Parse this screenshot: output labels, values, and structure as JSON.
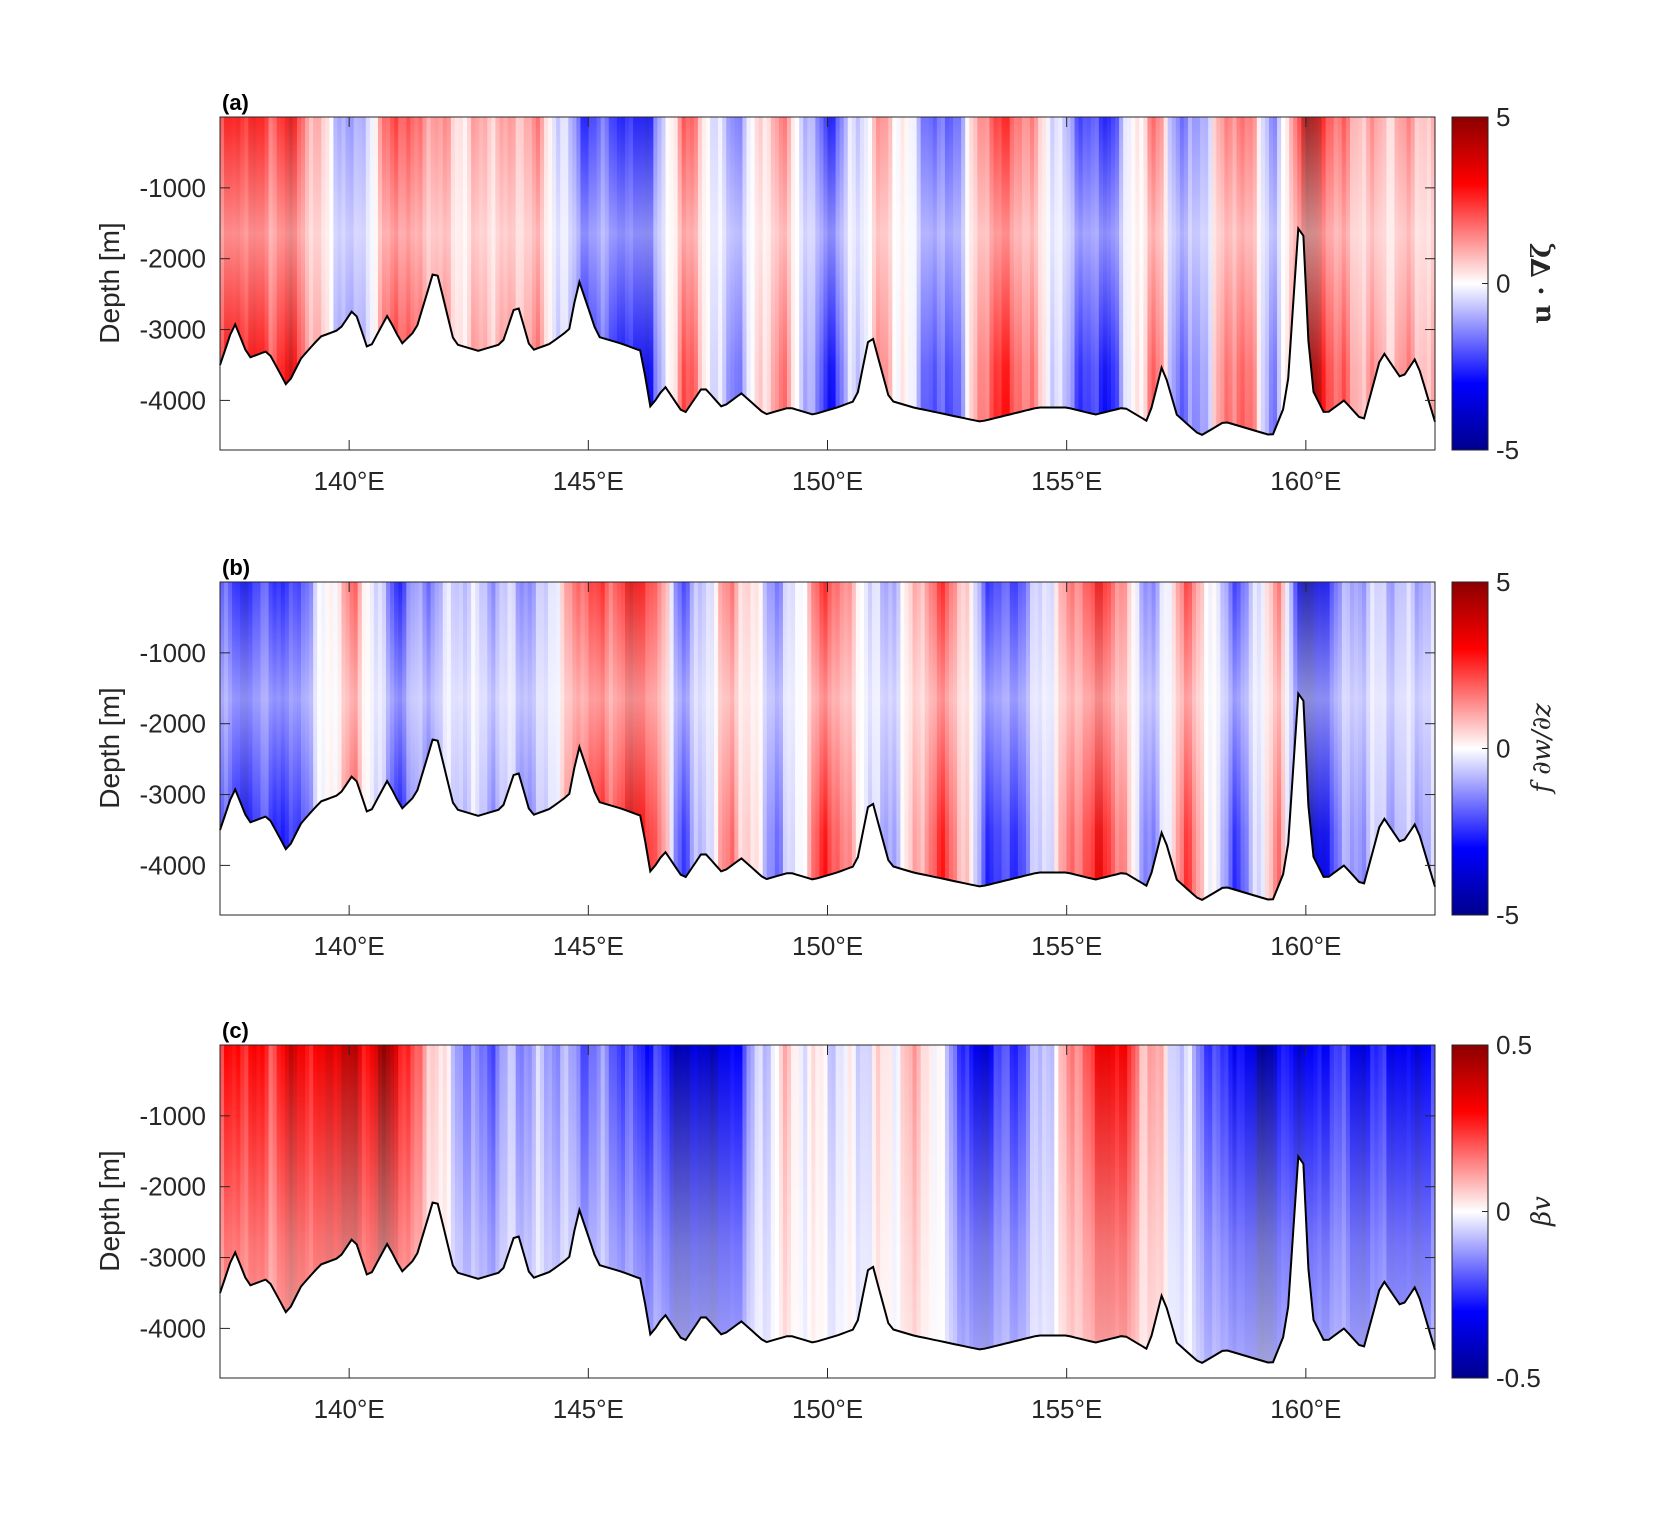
{
  "colors": {
    "negative": "#00008c",
    "neutral": "#ffffff",
    "positive": "#8c0000",
    "bathymetry": "#000000"
  },
  "chart_data": [
    {
      "type": "heatmap",
      "panel_label": "(a)",
      "ylabel": "Depth [m]",
      "xtick_labels": [
        "140°E",
        "145°E",
        "150°E",
        "155°E",
        "160°E"
      ],
      "xticks": [
        140,
        145,
        150,
        155,
        160
      ],
      "yticks": [
        -1000,
        -2000,
        -3000,
        -4000
      ],
      "ytick_labels": [
        "-1000",
        "-2000",
        "-3000",
        "-4000"
      ],
      "xlim": [
        137.3,
        162.7
      ],
      "ylim": [
        -4700,
        0
      ],
      "colorbar": {
        "label": "u · ∇ζ",
        "ticks": [
          5,
          0,
          -5
        ],
        "tick_labels": [
          "5",
          "0",
          "-5"
        ],
        "clim": [
          -5,
          5
        ]
      },
      "field": {
        "lon": [
          138.8,
          140.1,
          141.0,
          142.2,
          143.9,
          144.9,
          146.3,
          147.0,
          148.0,
          149.0,
          150.0,
          151.2,
          152.5,
          153.5,
          154.4,
          155.7,
          156.8,
          157.5,
          158.6,
          159.4,
          160.0,
          161.0
        ],
        "value": [
          3.2,
          -2.0,
          3.0,
          0.8,
          1.5,
          -2.5,
          -3.5,
          2.5,
          -1.8,
          1.8,
          -3.0,
          1.5,
          -3.2,
          3.5,
          1.0,
          -3.8,
          2.2,
          -2.8,
          3.0,
          -2.0,
          5.0,
          1.2
        ]
      }
    },
    {
      "type": "heatmap",
      "panel_label": "(b)",
      "ylabel": "Depth [m]",
      "xtick_labels": [
        "140°E",
        "145°E",
        "150°E",
        "155°E",
        "160°E"
      ],
      "xticks": [
        140,
        145,
        150,
        155,
        160
      ],
      "yticks": [
        -1000,
        -2000,
        -3000,
        -4000
      ],
      "ytick_labels": [
        "-1000",
        "-2000",
        "-3000",
        "-4000"
      ],
      "xlim": [
        137.3,
        162.7
      ],
      "ylim": [
        -4700,
        0
      ],
      "colorbar": {
        "label": "f ∂w/∂z",
        "ticks": [
          5,
          0,
          -5
        ],
        "tick_labels": [
          "5",
          "0",
          "-5"
        ],
        "clim": [
          -5,
          5
        ]
      },
      "field": {
        "lon": [
          138.8,
          140.1,
          141.0,
          142.2,
          143.9,
          144.9,
          146.3,
          147.0,
          148.0,
          149.0,
          150.0,
          151.2,
          152.5,
          153.5,
          154.4,
          155.7,
          156.8,
          157.5,
          158.6,
          159.4,
          160.0,
          161.0
        ],
        "value": [
          -3.0,
          2.0,
          -2.8,
          -0.6,
          -1.5,
          2.5,
          3.5,
          -2.5,
          1.8,
          -1.8,
          3.0,
          -1.5,
          3.2,
          -3.5,
          -1.0,
          3.8,
          -2.2,
          2.8,
          -3.0,
          2.0,
          -5.0,
          -1.0
        ]
      }
    },
    {
      "type": "heatmap",
      "panel_label": "(c)",
      "ylabel": "Depth [m]",
      "xtick_labels": [
        "140°E",
        "145°E",
        "150°E",
        "155°E",
        "160°E"
      ],
      "xticks": [
        140,
        145,
        150,
        155,
        160
      ],
      "yticks": [
        -1000,
        -2000,
        -3000,
        -4000
      ],
      "ytick_labels": [
        "-1000",
        "-2000",
        "-3000",
        "-4000"
      ],
      "xlim": [
        137.3,
        162.7
      ],
      "ylim": [
        -4700,
        0
      ],
      "colorbar": {
        "label": "βv",
        "ticks": [
          0.5,
          0,
          -0.5
        ],
        "tick_labels": [
          "0.5",
          "0",
          "-0.5"
        ],
        "clim": [
          -0.5,
          0.5
        ]
      },
      "field": {
        "lon": [
          138.0,
          140.8,
          142.5,
          144.0,
          146.0,
          147.5,
          149.0,
          150.5,
          152.0,
          153.2,
          154.5,
          155.8,
          157.5,
          159.0,
          160.5,
          161.8
        ],
        "value": [
          0.3,
          0.45,
          -0.2,
          -0.1,
          -0.25,
          -0.5,
          0.05,
          -0.05,
          0.1,
          -0.4,
          -0.1,
          0.4,
          -0.1,
          -0.45,
          -0.3,
          -0.35
        ]
      }
    }
  ],
  "bathymetry": {
    "lon": [
      137.3,
      137.6,
      137.9,
      138.3,
      138.7,
      139.0,
      139.4,
      139.8,
      140.1,
      140.4,
      140.8,
      141.1,
      141.4,
      141.8,
      142.2,
      142.7,
      143.2,
      143.5,
      143.8,
      144.2,
      144.6,
      144.8,
      145.2,
      145.7,
      146.1,
      146.3,
      146.6,
      147.0,
      147.4,
      147.8,
      148.2,
      148.7,
      149.2,
      149.7,
      150.2,
      150.6,
      150.9,
      151.3,
      151.8,
      152.5,
      153.2,
      153.8,
      154.4,
      155.0,
      155.6,
      156.2,
      156.7,
      157.0,
      157.3,
      157.8,
      158.3,
      158.8,
      159.3,
      159.6,
      159.9,
      160.1,
      160.4,
      160.8,
      161.2,
      161.6,
      162.0,
      162.3,
      162.7
    ],
    "depth": [
      -3500,
      -2900,
      -3400,
      -3300,
      -3800,
      -3400,
      -3100,
      -3000,
      -2700,
      -3300,
      -2800,
      -3200,
      -3000,
      -2100,
      -3200,
      -3300,
      -3200,
      -2600,
      -3300,
      -3200,
      -3000,
      -2300,
      -3100,
      -3200,
      -3300,
      -4100,
      -3800,
      -4200,
      -3800,
      -4100,
      -3900,
      -4200,
      -4100,
      -4200,
      -4100,
      -4000,
      -3000,
      -4000,
      -4100,
      -4200,
      -4300,
      -4200,
      -4100,
      -4100,
      -4200,
      -4100,
      -4300,
      -3500,
      -4200,
      -4500,
      -4300,
      -4400,
      -4500,
      -4000,
      -1000,
      -3800,
      -4200,
      -4000,
      -4300,
      -3300,
      -3700,
      -3400,
      -4300
    ]
  }
}
